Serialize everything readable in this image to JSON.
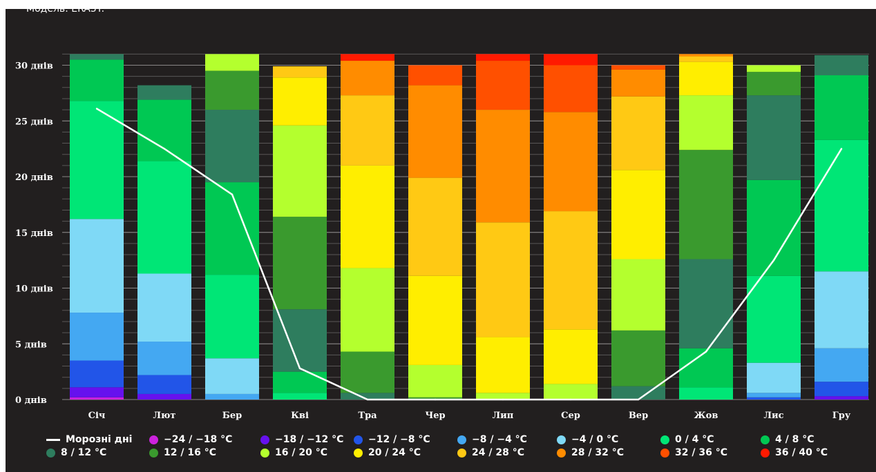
{
  "model_caption": "Модель: ERA5T.",
  "legend_line_label": "Морозні дні",
  "chart_data": {
    "type": "bar",
    "stacked": true,
    "ylim": [
      0,
      31
    ],
    "y_ticks": [
      {
        "value": 0,
        "label": "0 днів"
      },
      {
        "value": 5,
        "label": "5 днів"
      },
      {
        "value": 10,
        "label": "10 днів"
      },
      {
        "value": 15,
        "label": "15 днів"
      },
      {
        "value": 20,
        "label": "20 днів"
      },
      {
        "value": 25,
        "label": "25 днів"
      },
      {
        "value": 30,
        "label": "30 днів"
      }
    ],
    "categories": [
      "Січ",
      "Лют",
      "Бер",
      "Кві",
      "Тра",
      "Чер",
      "Лип",
      "Сер",
      "Вер",
      "Жов",
      "Лис",
      "Гру"
    ],
    "series": [
      {
        "name": "−24 / −18 °C",
        "color": "#cc22dd",
        "values": [
          0.2,
          0,
          0,
          0,
          0,
          0,
          0,
          0,
          0,
          0,
          0,
          0
        ]
      },
      {
        "name": "−18 / −12 °C",
        "color": "#6611ee",
        "values": [
          0.9,
          0.5,
          0,
          0,
          0,
          0,
          0,
          0,
          0,
          0,
          0,
          0.3
        ]
      },
      {
        "name": "−12 / −8 °C",
        "color": "#2255e8",
        "values": [
          2.4,
          1.7,
          0,
          0,
          0,
          0,
          0,
          0,
          0,
          0,
          0.2,
          1.3
        ]
      },
      {
        "name": "−8 / −4 °C",
        "color": "#44a8f2",
        "values": [
          4.3,
          3.0,
          0.5,
          0,
          0,
          0,
          0,
          0,
          0,
          0,
          0.4,
          3.0
        ]
      },
      {
        "name": "−4 / 0 °C",
        "color": "#7fd9f6",
        "values": [
          8.4,
          6.1,
          3.2,
          0,
          0,
          0,
          0,
          0,
          0,
          0,
          2.7,
          6.9
        ]
      },
      {
        "name": "0 / 4 °C",
        "color": "#00e676",
        "values": [
          10.6,
          10.1,
          7.5,
          0.6,
          0,
          0,
          0,
          0,
          0,
          1.1,
          7.8,
          11.8
        ]
      },
      {
        "name": "4 / 8 °C",
        "color": "#00c853",
        "values": [
          3.7,
          5.5,
          8.3,
          1.9,
          0,
          0,
          0,
          0,
          0,
          3.5,
          8.6,
          5.8
        ]
      },
      {
        "name": "8 / 12 °C",
        "color": "#2e7d5e",
        "values": [
          0.5,
          1.3,
          6.5,
          5.6,
          0.6,
          0,
          0,
          0,
          1.2,
          8.0,
          7.6,
          1.8
        ]
      },
      {
        "name": "12 / 16 °C",
        "color": "#3a9a2e",
        "values": [
          0,
          0,
          3.5,
          8.3,
          3.7,
          0.2,
          0,
          0,
          5.0,
          9.8,
          2.1,
          0
        ]
      },
      {
        "name": "16 / 20 °C",
        "color": "#b4ff2e",
        "values": [
          0,
          0,
          1.5,
          8.2,
          7.5,
          2.9,
          0.6,
          1.4,
          6.4,
          4.9,
          0.6,
          0
        ]
      },
      {
        "name": "20 / 24 °C",
        "color": "#ffee00",
        "values": [
          0,
          0,
          0,
          4.3,
          9.2,
          8.0,
          5.0,
          4.9,
          8.0,
          3.0,
          0,
          0
        ]
      },
      {
        "name": "24 / 28 °C",
        "color": "#ffc914",
        "values": [
          0,
          0,
          0,
          1.0,
          6.3,
          8.8,
          10.3,
          10.6,
          6.6,
          0.5,
          0,
          0
        ]
      },
      {
        "name": "28 / 32 °C",
        "color": "#ff8c00",
        "values": [
          0,
          0,
          0,
          0,
          3.1,
          8.3,
          10.1,
          8.9,
          2.4,
          0.2,
          0,
          0
        ]
      },
      {
        "name": "32 / 36 °C",
        "color": "#ff5000",
        "values": [
          0,
          0,
          0,
          0,
          0,
          1.8,
          4.4,
          4.2,
          0.4,
          0,
          0,
          0
        ]
      },
      {
        "name": "36 / 40 °C",
        "color": "#ff1a00",
        "values": [
          0,
          0,
          0,
          0,
          0.6,
          0,
          0.6,
          1.0,
          0,
          0,
          0,
          0
        ]
      }
    ],
    "line_series": {
      "name": "Морозні дні",
      "color": "#ffffff",
      "values": [
        26.1,
        22.5,
        18.4,
        2.8,
        0,
        0,
        0,
        0,
        0,
        4.3,
        12.5,
        22.5
      ]
    }
  }
}
